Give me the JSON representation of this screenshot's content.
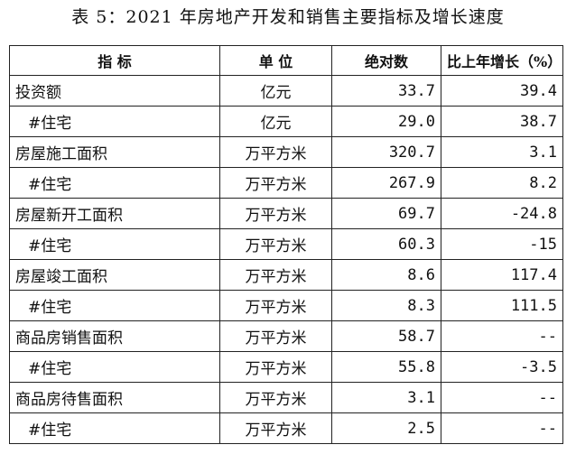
{
  "title": "表 5：2021 年房地产开发和销售主要指标及增长速度",
  "table": {
    "headers": [
      "指 标",
      "单 位",
      "绝对数",
      "比上年增长（%）"
    ],
    "rows": [
      {
        "indicator": "投资额",
        "unit": "亿元",
        "value": "33.7",
        "growth": "39.4",
        "sub": false
      },
      {
        "indicator": "#住宅",
        "unit": "亿元",
        "value": "29.0",
        "growth": "38.7",
        "sub": true
      },
      {
        "indicator": "房屋施工面积",
        "unit": "万平方米",
        "value": "320.7",
        "growth": "3.1",
        "sub": false
      },
      {
        "indicator": "#住宅",
        "unit": "万平方米",
        "value": "267.9",
        "growth": "8.2",
        "sub": true
      },
      {
        "indicator": "房屋新开工面积",
        "unit": "万平方米",
        "value": "69.7",
        "growth": "-24.8",
        "sub": false
      },
      {
        "indicator": "#住宅",
        "unit": "万平方米",
        "value": "60.3",
        "growth": "-15",
        "sub": true
      },
      {
        "indicator": "房屋竣工面积",
        "unit": "万平方米",
        "value": "8.6",
        "growth": "117.4",
        "sub": false
      },
      {
        "indicator": "#住宅",
        "unit": "万平方米",
        "value": "8.3",
        "growth": "111.5",
        "sub": true
      },
      {
        "indicator": "商品房销售面积",
        "unit": "万平方米",
        "value": "58.7",
        "growth": "--",
        "sub": false
      },
      {
        "indicator": "#住宅",
        "unit": "万平方米",
        "value": "55.8",
        "growth": "-3.5",
        "sub": true
      },
      {
        "indicator": "商品房待售面积",
        "unit": "万平方米",
        "value": "3.1",
        "growth": "--",
        "sub": false
      },
      {
        "indicator": "#住宅",
        "unit": "万平方米",
        "value": "2.5",
        "growth": "--",
        "sub": true
      }
    ]
  }
}
